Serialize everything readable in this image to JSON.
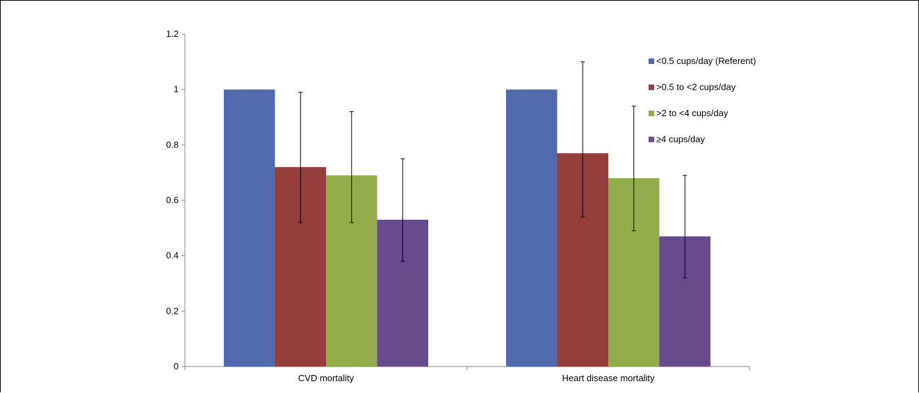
{
  "chart_data": {
    "type": "bar",
    "categories": [
      "CVD mortality",
      "Heart disease mortality"
    ],
    "series": [
      {
        "name": "<0.5 cups/day (Referent)",
        "color": "#5369AE",
        "values": [
          1.0,
          1.0
        ],
        "error_low": [
          null,
          null
        ],
        "error_high": [
          null,
          null
        ]
      },
      {
        "name": ">0.5 to <2 cups/day",
        "color": "#943F3D",
        "values": [
          0.72,
          0.77
        ],
        "error_low": [
          0.52,
          0.54
        ],
        "error_high": [
          0.99,
          1.1
        ]
      },
      {
        "name": ">2 to <4 cups/day",
        "color": "#94AD4C",
        "values": [
          0.69,
          0.68
        ],
        "error_low": [
          0.52,
          0.49
        ],
        "error_high": [
          0.92,
          0.94
        ]
      },
      {
        "name": "≥4 cups/day",
        "color": "#664C8C",
        "values": [
          0.53,
          0.47
        ],
        "error_low": [
          0.38,
          0.32
        ],
        "error_high": [
          0.75,
          0.69
        ]
      }
    ],
    "yticks": [
      "0",
      "0.2",
      "0.4",
      "0.6",
      "0.8",
      "1",
      "1.2"
    ],
    "ylim": [
      0,
      1.2
    ],
    "grid": false,
    "legend": "top-right"
  }
}
